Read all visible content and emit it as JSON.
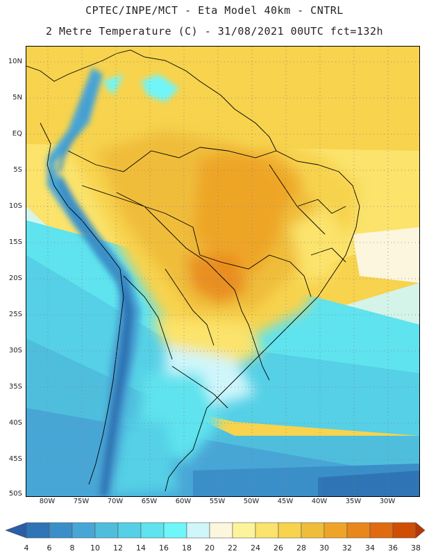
{
  "header": {
    "line1": "CPTEC/INPE/MCT  -  Eta Model 40km  - CNTRL",
    "line2": "2 Metre Temperature (C) - 31/08/2021 00UTC fct=132h"
  },
  "axes": {
    "lat_labels": [
      "10N",
      "5N",
      "EQ",
      "5S",
      "10S",
      "15S",
      "20S",
      "25S",
      "30S",
      "35S",
      "40S",
      "45S",
      "50S"
    ],
    "lon_labels": [
      "80W",
      "75W",
      "70W",
      "65W",
      "60W",
      "55W",
      "50W",
      "45W",
      "40W",
      "35W",
      "30W"
    ]
  },
  "legend": {
    "values": [
      "4",
      "6",
      "8",
      "10",
      "12",
      "14",
      "16",
      "18",
      "20",
      "22",
      "24",
      "26",
      "28",
      "30",
      "32",
      "34",
      "36",
      "38"
    ],
    "colors": [
      "#2a5ea6",
      "#2f75b5",
      "#3b8fc8",
      "#48a6d6",
      "#4fbedd",
      "#55d0e6",
      "#5fe3ee",
      "#6ff6f9",
      "#cff6fb",
      "#fdf6de",
      "#fdf39a",
      "#fbe36c",
      "#f7d34e",
      "#f0bd3a",
      "#eea527",
      "#e8871c",
      "#e06a10",
      "#d04d06",
      "#b83504"
    ],
    "arrow_left_color": "#2a5ea6",
    "arrow_right_color": "#b83504"
  }
}
